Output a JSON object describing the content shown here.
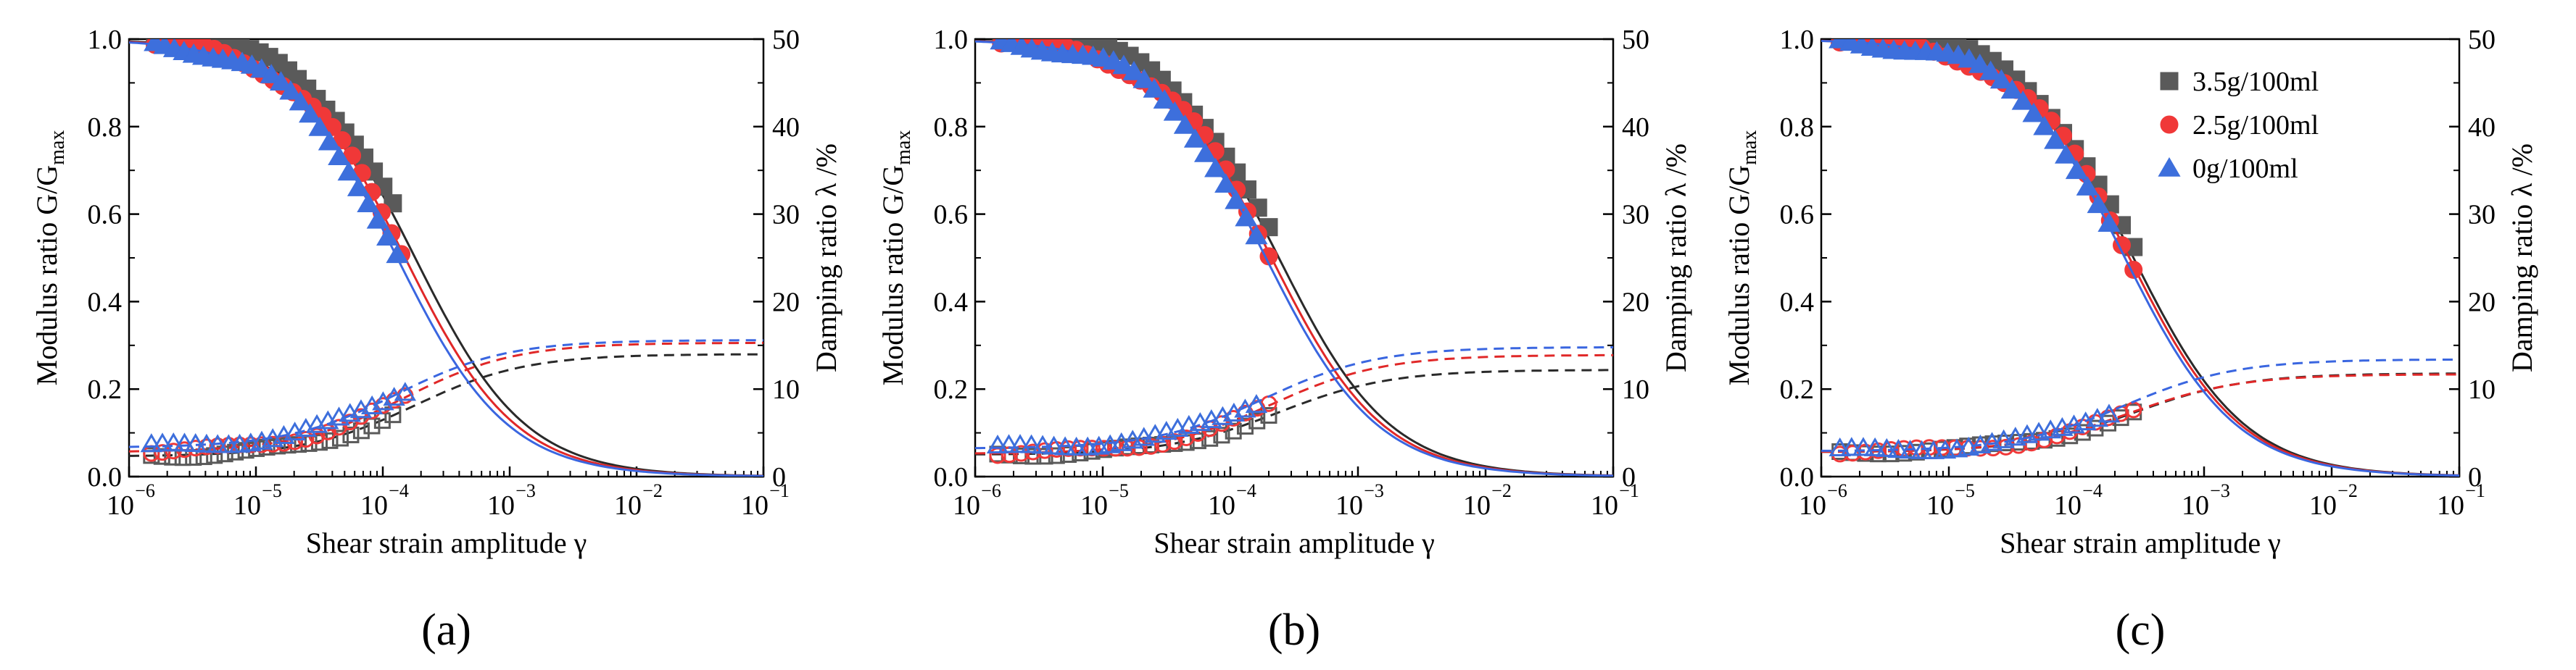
{
  "colors": {
    "s35": "#5a5a5a",
    "s25": "#f03838",
    "s0": "#3d6fdc",
    "fit35": "#2a2a2a",
    "fit25": "#e02828",
    "fit0": "#3a66e0"
  },
  "legend": {
    "s35": "3.5g/100ml",
    "s25": "2.5g/100ml",
    "s0": "0g/100ml"
  },
  "chart_data": [
    {
      "type": "scatter",
      "panel_label": "(a)",
      "xlabel": "Shear strain amplitude  γ",
      "ylabel_left": "Modulus ratio  G/G",
      "ylabel_left_sub": "max",
      "ylabel_right": "Damping ratio  λ /%",
      "xlim": [
        1e-06,
        0.1
      ],
      "ylim_left": [
        0,
        1.0
      ],
      "ylim_right": [
        0,
        50
      ],
      "x_ticks": [
        "10",
        "10",
        "10",
        "10",
        "10",
        "10"
      ],
      "x_tick_exp": [
        "−6",
        "−5",
        "−4",
        "−3",
        "−2",
        "−1"
      ],
      "y_ticks_left": [
        "0.0",
        "0.2",
        "0.4",
        "0.6",
        "0.8",
        "1.0"
      ],
      "y_ticks_right": [
        "0",
        "10",
        "20",
        "30",
        "40",
        "50"
      ],
      "legend_shown": false,
      "series": [
        {
          "name": "3.5g/100ml",
          "gamma_r": 0.00018,
          "damp_max": 14.0,
          "damp_min": 2.3,
          "g_range": [
            1.6e-06,
            0.00012
          ],
          "d_range": [
            1.5e-06,
            0.00012
          ]
        },
        {
          "name": "2.5g/100ml",
          "gamma_r": 0.00015,
          "damp_max": 15.3,
          "damp_min": 2.8,
          "g_range": [
            1.6e-06,
            0.00014
          ],
          "d_range": [
            1.5e-06,
            0.00015
          ]
        },
        {
          "name": "0g/100ml",
          "gamma_r": 0.00013,
          "damp_max": 15.6,
          "damp_min": 3.3,
          "g_range": [
            1.6e-06,
            0.00013
          ],
          "d_range": [
            1.5e-06,
            0.00015
          ]
        }
      ]
    },
    {
      "type": "scatter",
      "panel_label": "(b)",
      "xlabel": "Shear strain amplitude γ",
      "ylabel_left": "Modulus ratio G/G",
      "ylabel_left_sub": "max",
      "ylabel_right": "Damping ratio λ /%",
      "xlim": [
        1e-06,
        0.1
      ],
      "ylim_left": [
        0,
        1.0
      ],
      "ylim_right": [
        0,
        50
      ],
      "x_ticks": [
        "10",
        "10",
        "10",
        "10",
        "10",
        "10"
      ],
      "x_tick_exp": [
        "−6",
        "−5",
        "−4",
        "−3",
        "−2",
        "−1"
      ],
      "y_ticks_left": [
        "0.0",
        "0.2",
        "0.4",
        "0.6",
        "0.8",
        "1.0"
      ],
      "y_ticks_right": [
        "0",
        "10",
        "20",
        "30",
        "40",
        "50"
      ],
      "legend_shown": false,
      "series": [
        {
          "name": "3.5g/100ml",
          "gamma_r": 0.00024,
          "damp_max": 12.2,
          "damp_min": 2.5,
          "g_range": [
            1.6e-06,
            0.0002
          ],
          "d_range": [
            1.5e-06,
            0.0002
          ]
        },
        {
          "name": "2.5g/100ml",
          "gamma_r": 0.00021,
          "damp_max": 13.9,
          "damp_min": 2.6,
          "g_range": [
            1.6e-06,
            0.0002
          ],
          "d_range": [
            1.5e-06,
            0.0002
          ]
        },
        {
          "name": "0g/100ml",
          "gamma_r": 0.00019,
          "damp_max": 14.8,
          "damp_min": 3.2,
          "g_range": [
            1.6e-06,
            0.00016
          ],
          "d_range": [
            1.5e-06,
            0.00016
          ]
        }
      ]
    },
    {
      "type": "scatter",
      "panel_label": "(c)",
      "xlabel": "Shear strain amplitude γ",
      "ylabel_left": "Modulus ratio G/G",
      "ylabel_left_sub": "max",
      "ylabel_right": "Damping ratio λ /%",
      "xlim": [
        1e-06,
        0.1
      ],
      "ylim_left": [
        0,
        1.0
      ],
      "ylim_right": [
        0,
        50
      ],
      "x_ticks": [
        "10",
        "10",
        "10",
        "10",
        "10",
        "10"
      ],
      "x_tick_exp": [
        "−6",
        "−5",
        "−4",
        "−3",
        "−2",
        "−1"
      ],
      "y_ticks_left": [
        "0.0",
        "0.2",
        "0.4",
        "0.6",
        "0.8",
        "1.0"
      ],
      "y_ticks_right": [
        "0",
        "10",
        "20",
        "30",
        "40",
        "50"
      ],
      "legend_shown": true,
      "series": [
        {
          "name": "3.5g/100ml",
          "gamma_r": 0.00028,
          "damp_max": 11.8,
          "damp_min": 2.8,
          "g_range": [
            1.4e-06,
            0.00028
          ],
          "d_range": [
            1.4e-06,
            0.00028
          ]
        },
        {
          "name": "2.5g/100ml",
          "gamma_r": 0.00026,
          "damp_max": 11.7,
          "damp_min": 2.8,
          "g_range": [
            1.4e-06,
            0.00028
          ],
          "d_range": [
            1.4e-06,
            0.00028
          ]
        },
        {
          "name": "0g/100ml",
          "gamma_r": 0.00024,
          "damp_max": 13.4,
          "damp_min": 2.9,
          "g_range": [
            1.4e-06,
            0.00018
          ],
          "d_range": [
            1.4e-06,
            0.00018
          ]
        }
      ]
    }
  ]
}
